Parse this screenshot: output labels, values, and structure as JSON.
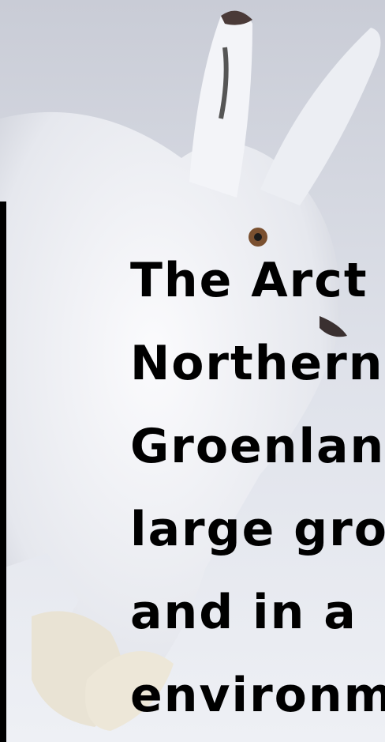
{
  "caption": {
    "lines": [
      "The Arct",
      "Northern",
      "Groenlanc",
      "large gro",
      "and in a",
      "environme"
    ]
  }
}
